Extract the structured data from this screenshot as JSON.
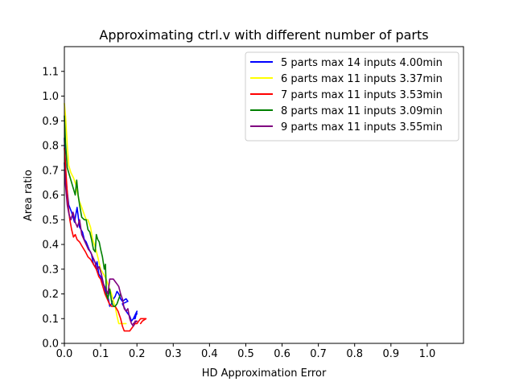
{
  "chart_data": {
    "type": "line",
    "title": "Approximating ctrl.v with different number of parts",
    "xlabel": "HD Approximation Error",
    "ylabel": "Area ratio",
    "xlim": [
      0,
      1.1
    ],
    "ylim": [
      0,
      1.2
    ],
    "xticks": [
      0.0,
      0.1,
      0.2,
      0.3,
      0.4,
      0.5,
      0.6,
      0.7,
      0.8,
      0.9,
      1.0
    ],
    "xtick_labels": [
      "0.0",
      "0.1",
      "0.2",
      "0.3",
      "0.4",
      "0.5",
      "0.6",
      "0.7",
      "0.8",
      "0.9",
      "1.0"
    ],
    "yticks": [
      0.0,
      0.1,
      0.2,
      0.3,
      0.4,
      0.5,
      0.6,
      0.7,
      0.8,
      0.9,
      1.0,
      1.1
    ],
    "ytick_labels": [
      "0.0",
      "0.1",
      "0.2",
      "0.3",
      "0.4",
      "0.5",
      "0.6",
      "0.7",
      "0.8",
      "0.9",
      "1.0",
      "1.1"
    ],
    "grid": false,
    "legend_position": "top-right",
    "series": [
      {
        "name": "5 parts max 14 inputs 4.00min",
        "color": "#0000ff",
        "x": [
          0.0,
          0.005,
          0.012,
          0.02,
          0.028,
          0.035,
          0.042,
          0.05,
          0.055,
          0.06,
          0.068,
          0.075,
          0.08,
          0.085,
          0.09,
          0.095,
          0.1,
          0.105,
          0.11,
          0.115,
          0.12,
          0.125,
          0.13,
          0.135,
          0.14,
          0.145,
          0.15,
          0.155,
          0.16,
          0.17,
          0.175,
          0.16,
          0.17,
          0.18,
          0.185,
          0.19,
          0.195,
          0.2,
          0.19,
          0.2
        ],
        "y": [
          0.83,
          0.65,
          0.56,
          0.53,
          0.49,
          0.55,
          0.47,
          0.45,
          0.42,
          0.41,
          0.38,
          0.36,
          0.32,
          0.31,
          0.33,
          0.28,
          0.27,
          0.25,
          0.23,
          0.2,
          0.19,
          0.15,
          0.16,
          0.18,
          0.19,
          0.21,
          0.2,
          0.18,
          0.17,
          0.18,
          0.17,
          0.16,
          0.13,
          0.11,
          0.09,
          0.1,
          0.1,
          0.13,
          0.1,
          0.12
        ]
      },
      {
        "name": "6 parts max 11 inputs 3.37min",
        "color": "#ffff00",
        "x": [
          0.0,
          0.003,
          0.008,
          0.012,
          0.018,
          0.025,
          0.032,
          0.04,
          0.048,
          0.055,
          0.06,
          0.065,
          0.072,
          0.078,
          0.085,
          0.092,
          0.1,
          0.108,
          0.115,
          0.12,
          0.125,
          0.13,
          0.135,
          0.14,
          0.145,
          0.15,
          0.155,
          0.16,
          0.17
        ],
        "y": [
          0.97,
          0.92,
          0.8,
          0.72,
          0.69,
          0.67,
          0.64,
          0.58,
          0.55,
          0.52,
          0.5,
          0.5,
          0.47,
          0.42,
          0.39,
          0.35,
          0.3,
          0.28,
          0.26,
          0.24,
          0.22,
          0.2,
          0.17,
          0.15,
          0.11,
          0.08,
          0.08,
          0.08,
          0.08
        ]
      },
      {
        "name": "7 parts max 11 inputs 3.53min",
        "color": "#ff0000",
        "x": [
          0.0,
          0.004,
          0.01,
          0.015,
          0.02,
          0.025,
          0.03,
          0.035,
          0.042,
          0.05,
          0.058,
          0.065,
          0.072,
          0.08,
          0.088,
          0.095,
          0.1,
          0.106,
          0.112,
          0.118,
          0.124,
          0.13,
          0.135,
          0.14,
          0.148,
          0.155,
          0.16,
          0.165,
          0.17,
          0.175,
          0.18,
          0.185,
          0.19,
          0.195,
          0.2,
          0.205,
          0.21,
          0.215,
          0.22,
          0.225,
          0.215,
          0.21
        ],
        "y": [
          0.79,
          0.7,
          0.56,
          0.5,
          0.46,
          0.43,
          0.44,
          0.42,
          0.41,
          0.39,
          0.37,
          0.35,
          0.34,
          0.32,
          0.3,
          0.27,
          0.26,
          0.23,
          0.2,
          0.18,
          0.16,
          0.15,
          0.15,
          0.15,
          0.13,
          0.1,
          0.07,
          0.05,
          0.05,
          0.05,
          0.05,
          0.06,
          0.07,
          0.08,
          0.08,
          0.09,
          0.1,
          0.1,
          0.1,
          0.1,
          0.09,
          0.08
        ]
      },
      {
        "name": "8 parts max 11 inputs 3.09min",
        "color": "#008000",
        "x": [
          0.0,
          0.003,
          0.008,
          0.014,
          0.02,
          0.026,
          0.03,
          0.034,
          0.038,
          0.042,
          0.048,
          0.055,
          0.06,
          0.065,
          0.07,
          0.075,
          0.08,
          0.085,
          0.088,
          0.092,
          0.096,
          0.1,
          0.105,
          0.11,
          0.113,
          0.116,
          0.12,
          0.125,
          0.13,
          0.135,
          0.14,
          0.145,
          0.15,
          0.155
        ],
        "y": [
          0.92,
          0.81,
          0.71,
          0.68,
          0.65,
          0.62,
          0.6,
          0.66,
          0.6,
          0.56,
          0.51,
          0.5,
          0.5,
          0.46,
          0.45,
          0.42,
          0.38,
          0.37,
          0.44,
          0.42,
          0.41,
          0.38,
          0.35,
          0.3,
          0.32,
          0.2,
          0.18,
          0.22,
          0.17,
          0.15,
          0.15,
          0.16,
          0.18,
          0.2
        ]
      },
      {
        "name": "9 parts max 11 inputs 3.55min",
        "color": "#800080",
        "x": [
          0.0,
          0.003,
          0.008,
          0.013,
          0.018,
          0.024,
          0.03,
          0.036,
          0.042,
          0.048,
          0.054,
          0.06,
          0.066,
          0.072,
          0.078,
          0.084,
          0.09,
          0.096,
          0.102,
          0.108,
          0.114,
          0.12,
          0.125,
          0.13,
          0.135,
          0.14,
          0.145,
          0.15,
          0.155,
          0.16,
          0.165,
          0.17,
          0.175,
          0.18,
          0.185,
          0.19,
          0.195,
          0.2,
          0.19
        ],
        "y": [
          0.73,
          0.64,
          0.56,
          0.52,
          0.5,
          0.53,
          0.49,
          0.47,
          0.5,
          0.44,
          0.42,
          0.4,
          0.38,
          0.37,
          0.35,
          0.33,
          0.3,
          0.31,
          0.28,
          0.24,
          0.22,
          0.2,
          0.26,
          0.26,
          0.26,
          0.25,
          0.24,
          0.23,
          0.2,
          0.18,
          0.14,
          0.13,
          0.14,
          0.1,
          0.08,
          0.07,
          0.09,
          0.09,
          0.08
        ]
      }
    ]
  }
}
